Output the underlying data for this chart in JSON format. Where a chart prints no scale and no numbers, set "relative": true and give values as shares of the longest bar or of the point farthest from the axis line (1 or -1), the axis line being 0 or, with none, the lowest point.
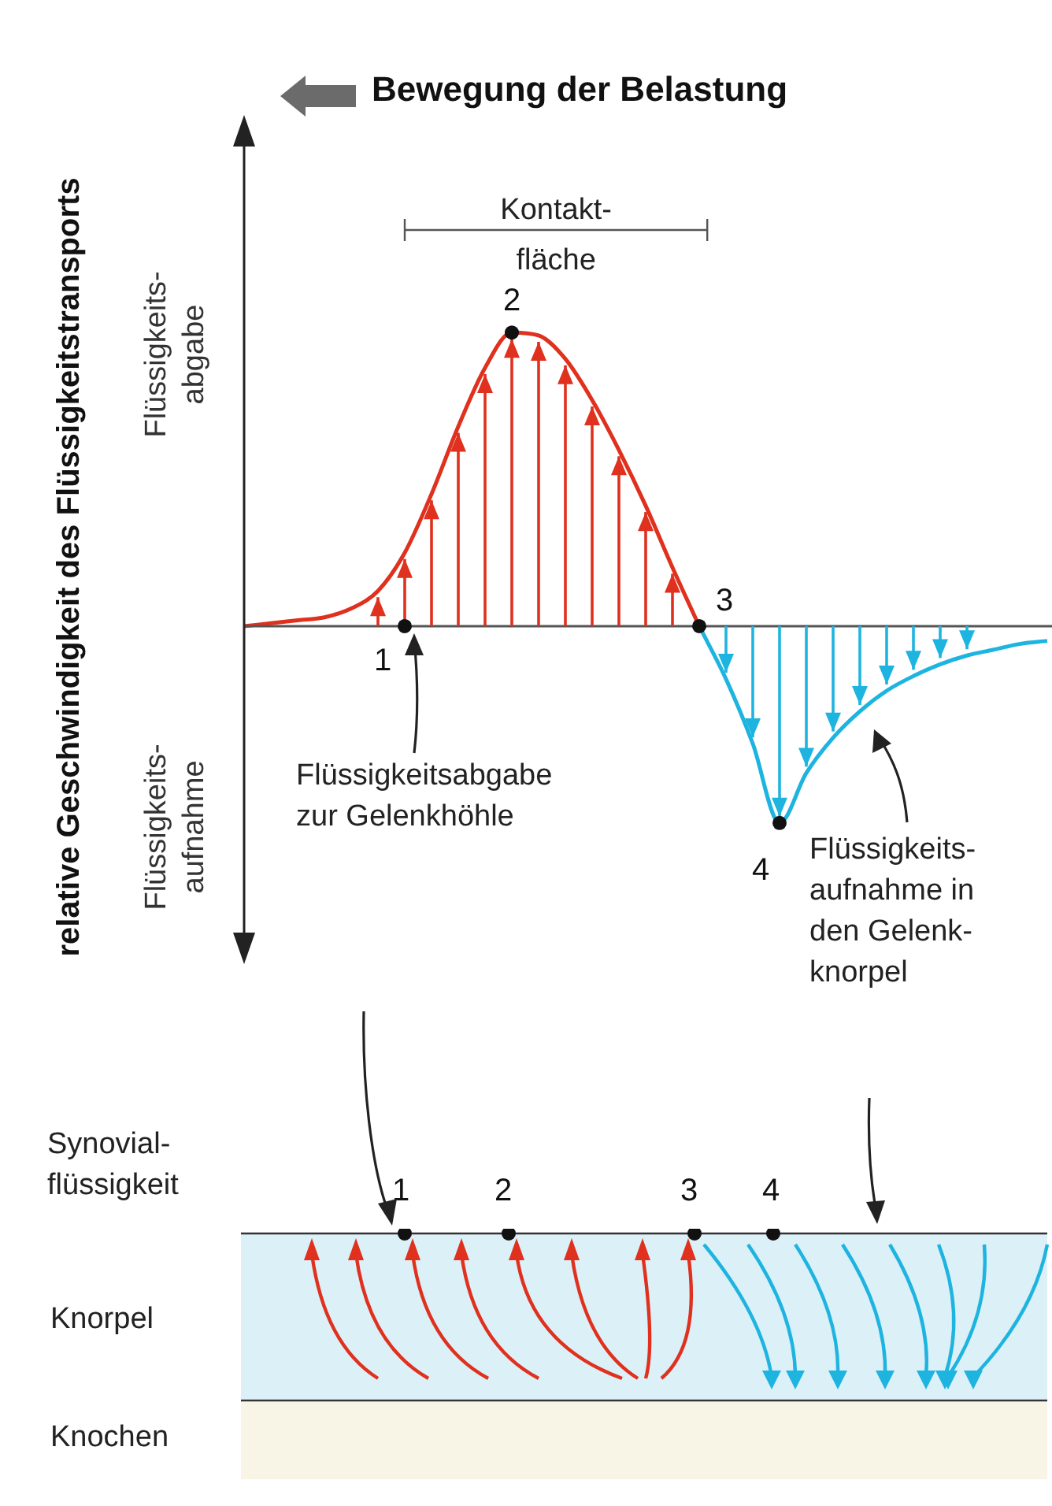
{
  "chart_data": {
    "type": "line",
    "relative": true,
    "title": "Bewegung der Belastung",
    "ylabel": "relative Geschwindigkeit des Flüssigkeitstransports",
    "categories": [
      null,
      null,
      null,
      null,
      null,
      null,
      null,
      null,
      null,
      null,
      null,
      null,
      null,
      null,
      null,
      null,
      null,
      null,
      null,
      null,
      null,
      null,
      null,
      null,
      null,
      null,
      null,
      null,
      null,
      null,
      null
    ],
    "series": [
      {
        "color": "#e0301e",
        "values": [
          0,
          0.01,
          0.02,
          0.03,
          0.06,
          0.12,
          0.25,
          0.45,
          0.68,
          0.88,
          1.0,
          0.99,
          0.91,
          0.77,
          0.6,
          0.41,
          0.2,
          0,
          null,
          null,
          null,
          null,
          null,
          null,
          null,
          null,
          null,
          null,
          null,
          null,
          null
        ]
      },
      {
        "color": "#1eb4e0",
        "values": [
          null,
          null,
          null,
          null,
          null,
          null,
          null,
          null,
          null,
          null,
          null,
          null,
          null,
          null,
          null,
          null,
          null,
          0,
          -0.18,
          -0.4,
          -0.67,
          -0.5,
          -0.38,
          -0.29,
          -0.22,
          -0.17,
          -0.13,
          -0.1,
          -0.08,
          -0.06,
          -0.05
        ]
      }
    ],
    "marker": "none",
    "line_style": "solid",
    "annotations": [
      "Kontakt-\nfläche",
      "1",
      "2",
      "3",
      "4",
      "Flüssigkeitsabgabe\nzur Gelenkhöhle",
      "Flüssigkeits-\naufnahme in\nden Gelenk-\nknorpel",
      "Flüssigkeits-\nabgabe",
      "Flüssigkeits-\naufnahme",
      "Synovial-\nflüssigkeit",
      "Knorpel",
      "Knochen"
    ]
  }
}
